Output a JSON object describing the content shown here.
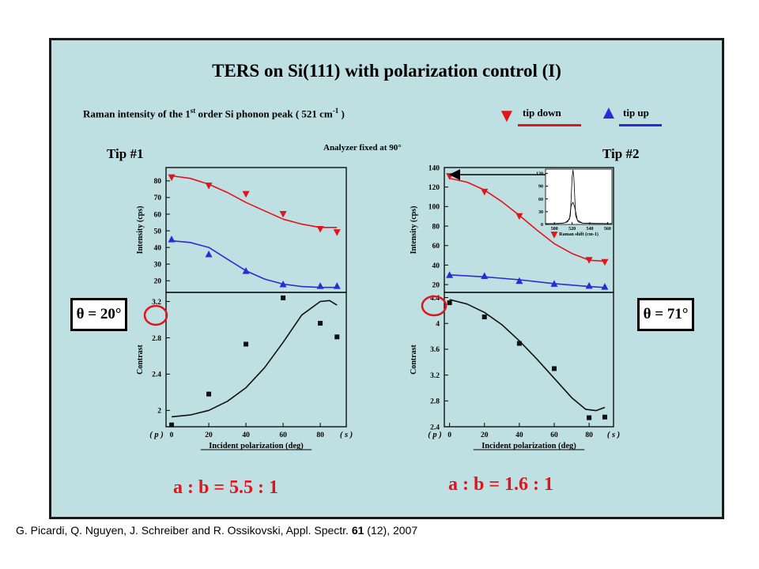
{
  "slide": {
    "title": "TERS on Si(111) with polarization control (I)",
    "subtitle_pre": "Raman intensity of the 1",
    "subtitle_sup1": "st",
    "subtitle_mid": " order Si phonon peak ( 521 cm",
    "subtitle_sup2": "-1",
    "subtitle_post": " )",
    "legend": {
      "down_label": "tip down",
      "up_label": "tip up",
      "down_color": "#e0141b",
      "up_color": "#2b2bd6"
    },
    "analyzer_note": "Analyzer fixed at 90°",
    "tip1_label": "Tip #1",
    "tip2_label": "Tip #2",
    "theta1": "θ = 20°",
    "theta2": "θ = 71°",
    "ratio1": "a  :  b    =    5.5  : 1",
    "ratio2": "a  :  b    =    1.6  : 1",
    "citation_pre": "G. Picardi, Q. Nguyen, J. Schreiber and R. Ossikovski, Appl. Spectr. ",
    "citation_vol": "61",
    "citation_post": " (12), 2007",
    "background_color": "#bfe0e3",
    "ratio_color": "#e0141b"
  },
  "chart_data": [
    {
      "id": "tip1-intensity",
      "type": "scatter",
      "ylabel": "Intensity (cps)",
      "xlim": [
        -3,
        94
      ],
      "ylim": [
        13,
        88
      ],
      "yticks": [
        20,
        30,
        40,
        50,
        60,
        70,
        80
      ],
      "x_tick_labels_shown": false,
      "series": [
        {
          "marker": "triangle-down",
          "color": "#e0141b",
          "points": [
            [
              0,
              82
            ],
            [
              20,
              77
            ],
            [
              40,
              72
            ],
            [
              60,
              60
            ],
            [
              80,
              51
            ],
            [
              89,
              49
            ]
          ]
        },
        {
          "marker": "triangle-up",
          "color": "#2b2bd6",
          "points": [
            [
              0,
              45
            ],
            [
              20,
              36
            ],
            [
              40,
              26
            ],
            [
              60,
              18
            ],
            [
              80,
              17
            ],
            [
              89,
              17
            ]
          ]
        }
      ],
      "fits": [
        {
          "color": "#e0141b",
          "points": [
            [
              0,
              83
            ],
            [
              10,
              81.5
            ],
            [
              20,
              78
            ],
            [
              30,
              73
            ],
            [
              40,
              67
            ],
            [
              50,
              62
            ],
            [
              60,
              57
            ],
            [
              70,
              54
            ],
            [
              80,
              52
            ],
            [
              89,
              52
            ]
          ]
        },
        {
          "color": "#2b2bd6",
          "points": [
            [
              0,
              44
            ],
            [
              10,
              43
            ],
            [
              20,
              40
            ],
            [
              30,
              33
            ],
            [
              40,
              26
            ],
            [
              50,
              21
            ],
            [
              60,
              18
            ],
            [
              70,
              16.5
            ],
            [
              80,
              16
            ],
            [
              89,
              16
            ]
          ]
        }
      ]
    },
    {
      "id": "tip1-contrast",
      "type": "scatter",
      "ylabel": "Contrast",
      "xlabel": "Incident polarization (deg)",
      "xlim": [
        -3,
        94
      ],
      "ylim": [
        1.82,
        3.3
      ],
      "yticks": [
        2.0,
        2.4,
        2.8,
        3.2
      ],
      "xticks": [
        0,
        20,
        40,
        60,
        80
      ],
      "p_label": "( p )",
      "s_label": "( s )",
      "series": [
        {
          "marker": "square",
          "color": "#111111",
          "points": [
            [
              0,
              1.84
            ],
            [
              20,
              2.18
            ],
            [
              40,
              2.73
            ],
            [
              60,
              3.24
            ],
            [
              80,
              2.96
            ],
            [
              89,
              2.81
            ]
          ]
        }
      ],
      "fits": [
        {
          "color": "#111111",
          "points": [
            [
              0,
              1.93
            ],
            [
              10,
              1.95
            ],
            [
              20,
              2.0
            ],
            [
              30,
              2.1
            ],
            [
              40,
              2.25
            ],
            [
              50,
              2.47
            ],
            [
              60,
              2.75
            ],
            [
              70,
              3.05
            ],
            [
              80,
              3.2
            ],
            [
              85,
              3.21
            ],
            [
              89,
              3.16
            ]
          ]
        }
      ]
    },
    {
      "id": "tip2-intensity",
      "type": "scatter",
      "ylabel": "Intensity (cps)",
      "xlim": [
        -3,
        94
      ],
      "ylim": [
        12,
        140
      ],
      "yticks": [
        20,
        40,
        60,
        80,
        100,
        120,
        140
      ],
      "x_tick_labels_shown": false,
      "series": [
        {
          "marker": "triangle-down",
          "color": "#e0141b",
          "points": [
            [
              0,
              131
            ],
            [
              20,
              115
            ],
            [
              40,
              90
            ],
            [
              60,
              71
            ],
            [
              80,
              45
            ],
            [
              89,
              43
            ]
          ]
        },
        {
          "marker": "triangle-up",
          "color": "#2b2bd6",
          "points": [
            [
              0,
              30
            ],
            [
              20,
              29
            ],
            [
              40,
              24
            ],
            [
              60,
              21
            ],
            [
              80,
              19
            ],
            [
              89,
              18
            ]
          ]
        }
      ],
      "fits": [
        {
          "color": "#e0141b",
          "points": [
            [
              0,
              129
            ],
            [
              10,
              125
            ],
            [
              20,
              117
            ],
            [
              30,
              105
            ],
            [
              40,
              91
            ],
            [
              50,
              76
            ],
            [
              60,
              62
            ],
            [
              70,
              52
            ],
            [
              80,
              45
            ],
            [
              89,
              44
            ]
          ]
        },
        {
          "color": "#2b2bd6",
          "points": [
            [
              0,
              30
            ],
            [
              20,
              28
            ],
            [
              40,
              25
            ],
            [
              60,
              21
            ],
            [
              80,
              18
            ],
            [
              89,
              17
            ]
          ]
        }
      ]
    },
    {
      "id": "tip2-contrast",
      "type": "scatter",
      "ylabel": "Contrast",
      "xlabel": "Incident polarization (deg)",
      "xlim": [
        -3,
        94
      ],
      "ylim": [
        2.4,
        4.48
      ],
      "yticks": [
        2.4,
        2.8,
        3.2,
        3.6,
        4.0,
        4.4
      ],
      "xticks": [
        0,
        20,
        40,
        60,
        80
      ],
      "p_label": "( p )",
      "s_label": "( s )",
      "series": [
        {
          "marker": "square",
          "color": "#111111",
          "points": [
            [
              0,
              4.32
            ],
            [
              20,
              4.1
            ],
            [
              40,
              3.69
            ],
            [
              60,
              3.3
            ],
            [
              80,
              2.54
            ],
            [
              89,
              2.55
            ]
          ]
        }
      ],
      "fits": [
        {
          "color": "#111111",
          "points": [
            [
              0,
              4.37
            ],
            [
              10,
              4.3
            ],
            [
              20,
              4.17
            ],
            [
              30,
              3.98
            ],
            [
              40,
              3.73
            ],
            [
              50,
              3.45
            ],
            [
              60,
              3.15
            ],
            [
              70,
              2.85
            ],
            [
              78,
              2.67
            ],
            [
              84,
              2.65
            ],
            [
              89,
              2.7
            ]
          ]
        }
      ]
    },
    {
      "id": "raman-inset",
      "type": "line",
      "xlabel": "Raman shift (cm-1)",
      "xlim": [
        490,
        565
      ],
      "ylim": [
        0,
        130
      ],
      "xticks": [
        500,
        520,
        540,
        560
      ],
      "yticks": [
        0,
        30,
        60,
        90,
        120
      ],
      "series": [
        {
          "color": "#000000",
          "points": [
            [
              490,
              2
            ],
            [
              500,
              2
            ],
            [
              510,
              3
            ],
            [
              515,
              6
            ],
            [
              518,
              20
            ],
            [
              520,
              110
            ],
            [
              521,
              128
            ],
            [
              522,
              110
            ],
            [
              524,
              20
            ],
            [
              527,
              6
            ],
            [
              532,
              3
            ],
            [
              545,
              2
            ],
            [
              565,
              2
            ]
          ]
        },
        {
          "color": "#000000",
          "points": [
            [
              490,
              2
            ],
            [
              505,
              2
            ],
            [
              512,
              4
            ],
            [
              517,
              12
            ],
            [
              519,
              45
            ],
            [
              521,
              52
            ],
            [
              523,
              40
            ],
            [
              526,
              10
            ],
            [
              532,
              3
            ],
            [
              565,
              2
            ]
          ]
        }
      ]
    }
  ]
}
